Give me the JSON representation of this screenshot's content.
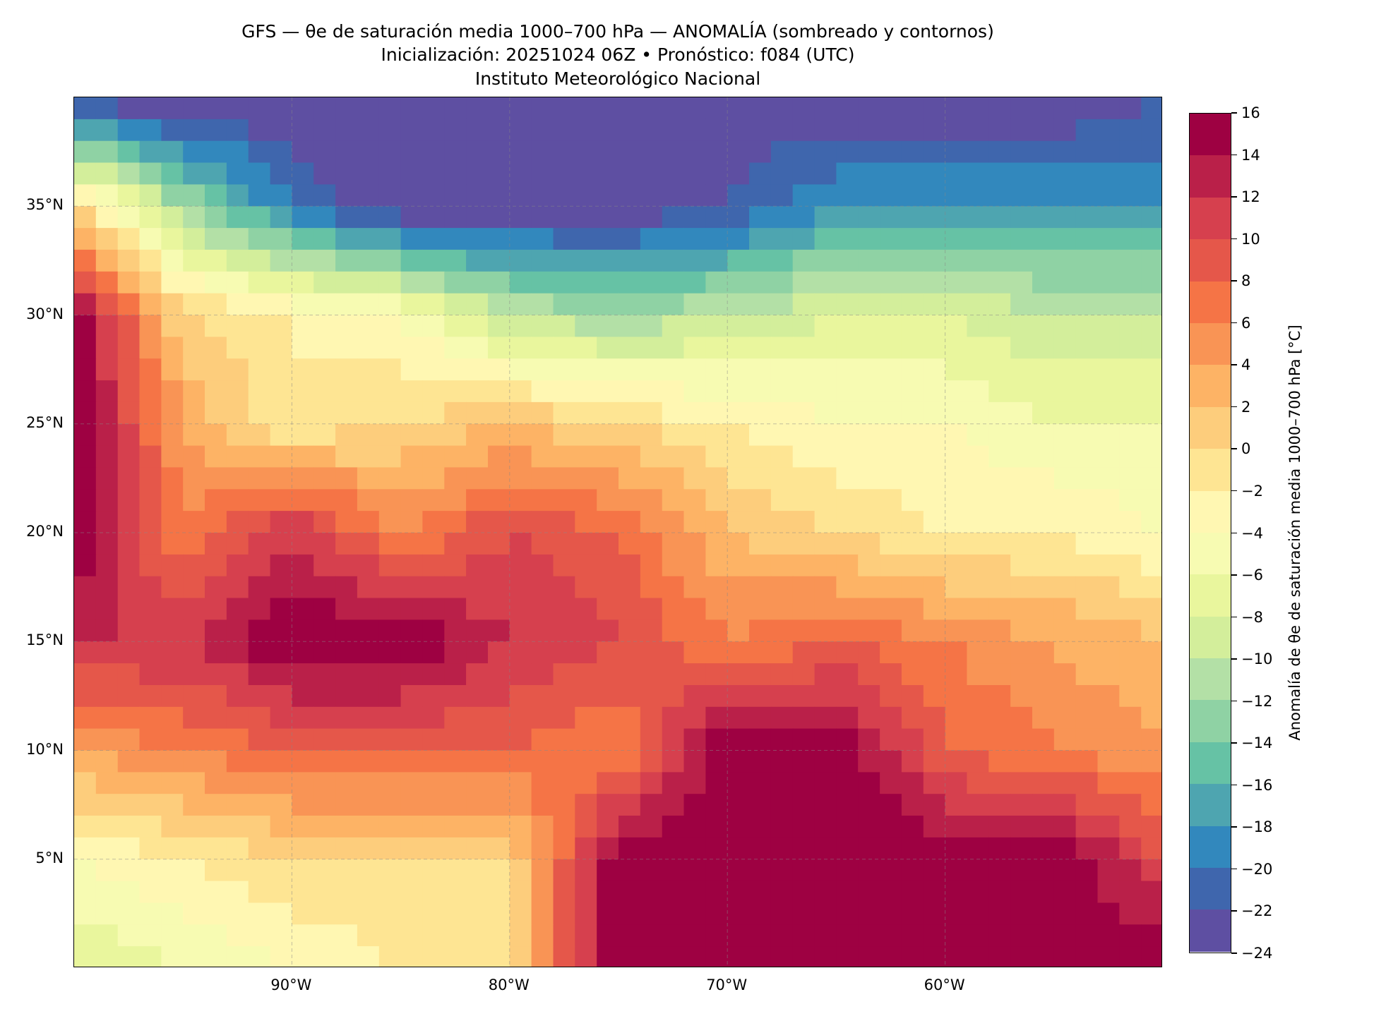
{
  "title": {
    "line1": "GFS — θe de saturación media 1000–700 hPa — ANOMALÍA (sombreado y contornos)",
    "line2": "Inicialización: 20251024 06Z   •   Pronóstico: f084 (UTC)",
    "line3": "Instituto Meteorológico Nacional"
  },
  "chart_data": {
    "type": "heatmap",
    "title": "GFS — θe de saturación media 1000–700 hPa — ANOMALÍA (sombreado y contornos)",
    "lon_range": [
      -100,
      -50
    ],
    "lat_range": [
      0,
      40
    ],
    "lat_ticks": [
      {
        "value": 35,
        "label": "35°N"
      },
      {
        "value": 30,
        "label": "30°N"
      },
      {
        "value": 25,
        "label": "25°N"
      },
      {
        "value": 20,
        "label": "20°N"
      },
      {
        "value": 15,
        "label": "15°N"
      },
      {
        "value": 10,
        "label": "10°N"
      },
      {
        "value": 5,
        "label": "5°N"
      }
    ],
    "lon_ticks": [
      {
        "value": -90,
        "label": "90°W"
      },
      {
        "value": -80,
        "label": "80°W"
      },
      {
        "value": -70,
        "label": "70°W"
      },
      {
        "value": -60,
        "label": "60°W"
      }
    ],
    "grid": true,
    "sample_grid": {
      "lons": [
        -100,
        -95,
        -90,
        -85,
        -80,
        -75,
        -70,
        -65,
        -60,
        -55,
        -50
      ],
      "lats": [
        40,
        35,
        30,
        25,
        20,
        15,
        10,
        5,
        0
      ],
      "values": [
        [
          -24,
          -24,
          -24,
          -24,
          -24,
          -24,
          -24,
          -24,
          -24,
          -24,
          -22
        ],
        [
          0,
          -12,
          -20,
          -24,
          -24,
          -24,
          -22,
          -18,
          -18,
          -18,
          -18
        ],
        [
          16,
          0,
          -2,
          -4,
          -10,
          -12,
          -10,
          -8,
          -8,
          -10,
          -10
        ],
        [
          16,
          4,
          -2,
          0,
          2,
          0,
          -2,
          -4,
          -4,
          -6,
          -6
        ],
        [
          16,
          6,
          12,
          6,
          10,
          8,
          2,
          0,
          -2,
          -2,
          -4
        ],
        [
          12,
          12,
          16,
          16,
          12,
          10,
          6,
          8,
          6,
          4,
          2
        ],
        [
          4,
          6,
          8,
          8,
          8,
          6,
          16,
          16,
          8,
          6,
          4
        ],
        [
          -4,
          -2,
          0,
          0,
          0,
          16,
          16,
          16,
          16,
          16,
          10
        ],
        [
          -8,
          -6,
          -4,
          -2,
          0,
          16,
          16,
          16,
          16,
          16,
          16
        ]
      ]
    },
    "colorbar": {
      "label": "Anomalía de θe de saturación media 1000–700 hPa [°C]",
      "levels": [
        -24,
        -22,
        -20,
        -18,
        -16,
        -14,
        -12,
        -10,
        -8,
        -6,
        -4,
        -2,
        0,
        2,
        4,
        6,
        8,
        10,
        12,
        14,
        16
      ],
      "tick_labels": [
        "−24",
        "−22",
        "−20",
        "−18",
        "−16",
        "−14",
        "−12",
        "−10",
        "−8",
        "−6",
        "−4",
        "−2",
        "0",
        "2",
        "4",
        "6",
        "8",
        "10",
        "12",
        "14",
        "16"
      ],
      "colors": [
        "#5e4fa2",
        "#3f66ad",
        "#3288bd",
        "#4ea5b0",
        "#66c2a5",
        "#8fd2a4",
        "#b3e0a6",
        "#d3ee9b",
        "#e9f69d",
        "#f7fbb2",
        "#fff7b2",
        "#fee593",
        "#fdcd7c",
        "#fdb365",
        "#f99455",
        "#f57446",
        "#e5574a",
        "#d6404e",
        "#ba2049",
        "#9e0142"
      ]
    }
  }
}
